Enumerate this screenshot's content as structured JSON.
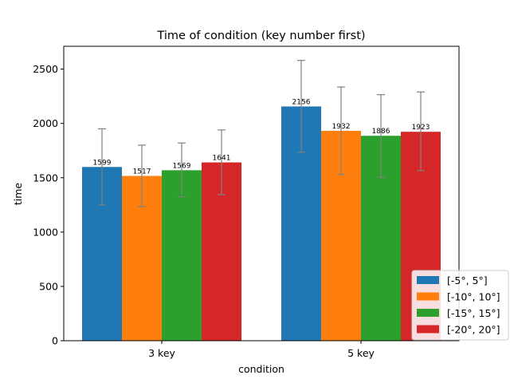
{
  "chart_data": {
    "type": "bar",
    "title": "Time of condition (key number first)",
    "xlabel": "condition",
    "ylabel": "time",
    "categories": [
      "3 key",
      "5 key"
    ],
    "ylim": [
      0,
      2710
    ],
    "yticks": [
      0,
      500,
      1000,
      1500,
      2000,
      2500
    ],
    "grid": false,
    "legend_position": "bottom-right",
    "series": [
      {
        "name": "[-5°, 5°]",
        "color": "#1f77b4",
        "values": [
          1599,
          2156
        ],
        "error_low": [
          1250,
          1735
        ],
        "error_high": [
          1950,
          2580
        ],
        "labels": [
          "1599",
          "2156"
        ]
      },
      {
        "name": "[-10°, 10°]",
        "color": "#ff7f0e",
        "values": [
          1517,
          1932
        ],
        "error_low": [
          1235,
          1530
        ],
        "error_high": [
          1800,
          2335
        ],
        "labels": [
          "1517",
          "1932"
        ]
      },
      {
        "name": "[-15°, 15°]",
        "color": "#2ca02c",
        "values": [
          1569,
          1886
        ],
        "error_low": [
          1325,
          1505
        ],
        "error_high": [
          1820,
          2265
        ],
        "labels": [
          "1569",
          "1886"
        ]
      },
      {
        "name": "[-20°, 20°]",
        "color": "#d62728",
        "values": [
          1641,
          1923
        ],
        "error_low": [
          1345,
          1565
        ],
        "error_high": [
          1940,
          2290
        ],
        "labels": [
          "1641",
          "1923"
        ]
      }
    ]
  }
}
